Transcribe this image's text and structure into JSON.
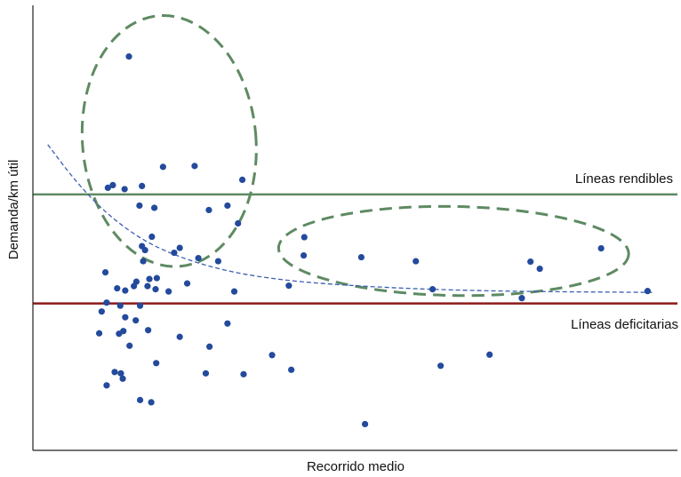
{
  "chart_data": {
    "type": "scatter",
    "title": "",
    "xlabel": "Recorrido medio",
    "ylabel": "Demanda/km útil",
    "xlim": [
      0,
      100
    ],
    "ylim": [
      0,
      100
    ],
    "grid": false,
    "legend": "none",
    "colors": {
      "points": "#234a9c",
      "trend": "#3a5fb0",
      "rendibles": "#5e8a62",
      "deficitarias": "#8b1a1a",
      "ellipses": "#5e8a62",
      "axes": "#222222"
    },
    "reference_lines": [
      {
        "label": "Líneas rendibles",
        "y": 57.5,
        "color": "#5e8a62"
      },
      {
        "label": "Líneas deficitarias",
        "y": 33.0,
        "color": "#8b1a1a"
      }
    ],
    "trend_curve": [
      [
        2.4,
        68.7
      ],
      [
        6.7,
        60.8
      ],
      [
        10.9,
        54.5
      ],
      [
        15.2,
        49.6
      ],
      [
        19.5,
        45.9
      ],
      [
        25.1,
        42.7
      ],
      [
        32.1,
        40.0
      ],
      [
        40.5,
        38.2
      ],
      [
        50.3,
        37.1
      ],
      [
        61.5,
        36.3
      ],
      [
        74.1,
        35.8
      ],
      [
        88.1,
        35.6
      ],
      [
        100,
        35.5
      ]
    ],
    "clusters": [
      {
        "cx": 22.0,
        "cy": 69.5,
        "rx": 28.0,
        "ry": 56.5,
        "rotation_deg": -5
      },
      {
        "cx": 67.9,
        "cy": 44.8,
        "rx": 56.5,
        "ry": 20.0,
        "rotation_deg": 1
      }
    ],
    "points": [
      [
        15.5,
        88.5
      ],
      [
        21.0,
        63.7
      ],
      [
        26.1,
        63.9
      ],
      [
        33.8,
        60.8
      ],
      [
        12.9,
        59.6
      ],
      [
        12.1,
        59.0
      ],
      [
        14.8,
        58.7
      ],
      [
        17.6,
        59.4
      ],
      [
        17.2,
        55.0
      ],
      [
        19.6,
        54.5
      ],
      [
        28.4,
        54.0
      ],
      [
        31.4,
        55.0
      ],
      [
        33.1,
        51.0
      ],
      [
        19.2,
        48.0
      ],
      [
        17.6,
        45.9
      ],
      [
        18.1,
        45.0
      ],
      [
        23.7,
        45.5
      ],
      [
        22.8,
        44.4
      ],
      [
        26.7,
        43.2
      ],
      [
        29.9,
        42.5
      ],
      [
        17.8,
        42.5
      ],
      [
        11.7,
        40.0
      ],
      [
        18.8,
        38.5
      ],
      [
        20.0,
        38.7
      ],
      [
        16.7,
        37.9
      ],
      [
        16.3,
        36.9
      ],
      [
        18.5,
        36.9
      ],
      [
        24.9,
        37.5
      ],
      [
        13.6,
        36.4
      ],
      [
        14.9,
        35.9
      ],
      [
        19.8,
        36.2
      ],
      [
        21.9,
        35.7
      ],
      [
        32.5,
        35.7
      ],
      [
        11.9,
        33.2
      ],
      [
        14.1,
        32.5
      ],
      [
        17.3,
        32.5
      ],
      [
        11.1,
        31.2
      ],
      [
        14.9,
        29.9
      ],
      [
        16.6,
        29.2
      ],
      [
        31.4,
        28.5
      ],
      [
        14.6,
        26.8
      ],
      [
        18.6,
        27.0
      ],
      [
        10.7,
        26.3
      ],
      [
        13.9,
        26.2
      ],
      [
        23.7,
        25.5
      ],
      [
        15.6,
        23.5
      ],
      [
        28.5,
        23.3
      ],
      [
        38.6,
        21.4
      ],
      [
        19.9,
        19.6
      ],
      [
        41.7,
        18.1
      ],
      [
        13.2,
        17.6
      ],
      [
        14.2,
        17.3
      ],
      [
        27.9,
        17.3
      ],
      [
        34.0,
        17.1
      ],
      [
        14.5,
        16.1
      ],
      [
        11.9,
        14.6
      ],
      [
        17.3,
        11.3
      ],
      [
        19.1,
        10.8
      ],
      [
        43.8,
        47.9
      ],
      [
        43.7,
        43.8
      ],
      [
        53.0,
        43.4
      ],
      [
        61.8,
        42.5
      ],
      [
        80.3,
        42.4
      ],
      [
        81.8,
        40.8
      ],
      [
        91.7,
        45.4
      ],
      [
        41.3,
        37.0
      ],
      [
        64.5,
        36.2
      ],
      [
        78.9,
        34.2
      ],
      [
        99.2,
        35.8
      ],
      [
        65.8,
        19.0
      ],
      [
        73.7,
        21.5
      ],
      [
        53.6,
        5.9
      ]
    ]
  }
}
